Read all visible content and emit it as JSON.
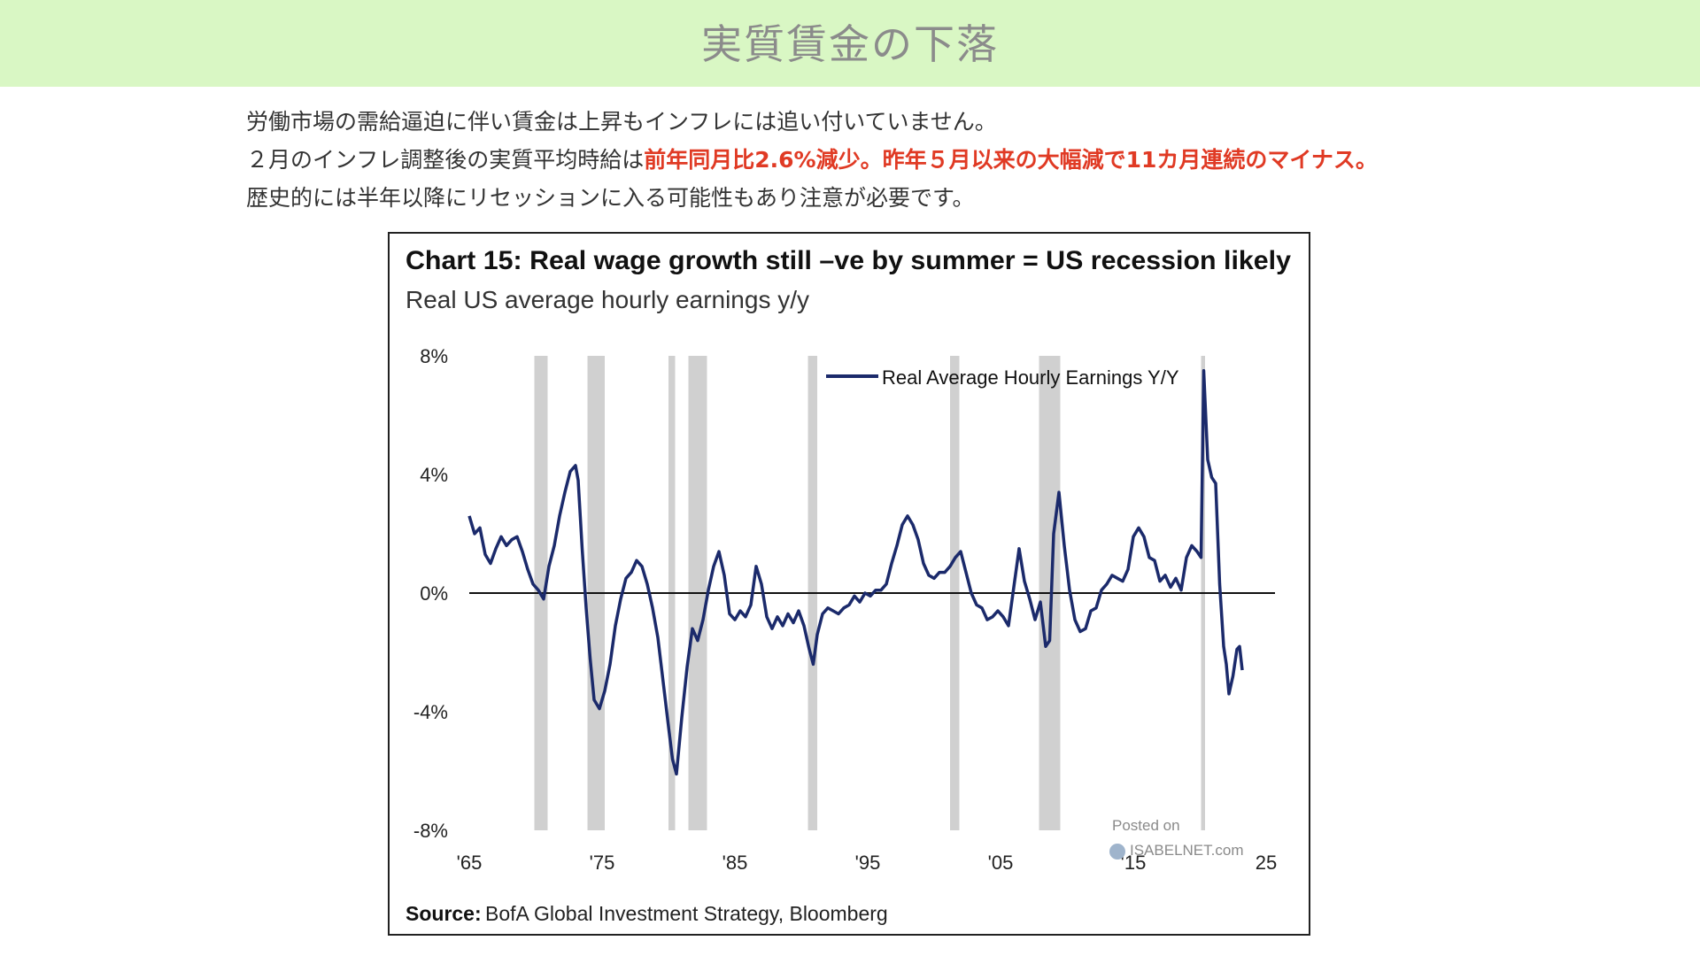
{
  "header": {
    "title": "実質賃金の下落"
  },
  "intro": {
    "line1": "労働市場の需給逼迫に伴い賃金は上昇もインフレには追い付いていません。",
    "line2_pre": "２月のインフレ調整後の実質平均時給は",
    "line2_highlight": "前年同月比2.6%減少。昨年５月以来の大幅減で11カ月連続のマイナス。",
    "line3": "歴史的には半年以降にリセッションに入る可能性もあり注意が必要です。"
  },
  "colors": {
    "header_bg": "#d9f7c4",
    "highlight": "#e03a24",
    "series": "#1b2a6b",
    "recession": "#c8c8c8"
  },
  "chart_data": {
    "type": "line",
    "title": "Chart 15: Real wage growth still –ve by summer = US recession likely",
    "subtitle": "Real US average hourly earnings y/y",
    "source_label": "Source:",
    "source_text": "BofA Global Investment Strategy, Bloomberg",
    "watermark": {
      "line1": "Posted on",
      "line2": "ISABELNET.com"
    },
    "xlim": [
      1965,
      2025
    ],
    "ylim": [
      -8,
      8
    ],
    "x_ticks": [
      1965,
      1975,
      1985,
      1995,
      2005,
      2015,
      2025
    ],
    "x_tick_labels": [
      "'65",
      "'75",
      "'85",
      "'95",
      "'05",
      "'15",
      "25"
    ],
    "y_ticks": [
      8,
      4,
      0,
      -4,
      -8
    ],
    "y_tick_labels": [
      "8%",
      "4%",
      "0%",
      "-4%",
      "-8%"
    ],
    "recessions": [
      [
        1969.9,
        1970.9
      ],
      [
        1973.9,
        1975.2
      ],
      [
        1980.0,
        1980.5
      ],
      [
        1981.5,
        1982.9
      ],
      [
        1990.5,
        1991.2
      ],
      [
        2001.2,
        2001.9
      ],
      [
        2007.9,
        2009.5
      ],
      [
        2020.1,
        2020.4
      ]
    ],
    "series": [
      {
        "name": "Real Average Hourly Earnings Y/Y",
        "points": [
          [
            1965.0,
            2.6
          ],
          [
            1965.4,
            2.0
          ],
          [
            1965.8,
            2.2
          ],
          [
            1966.2,
            1.3
          ],
          [
            1966.6,
            1.0
          ],
          [
            1967.0,
            1.5
          ],
          [
            1967.4,
            1.9
          ],
          [
            1967.8,
            1.6
          ],
          [
            1968.2,
            1.8
          ],
          [
            1968.6,
            1.9
          ],
          [
            1969.0,
            1.4
          ],
          [
            1969.4,
            0.8
          ],
          [
            1969.8,
            0.3
          ],
          [
            1970.2,
            0.1
          ],
          [
            1970.6,
            -0.2
          ],
          [
            1971.0,
            0.9
          ],
          [
            1971.4,
            1.6
          ],
          [
            1971.8,
            2.6
          ],
          [
            1972.2,
            3.4
          ],
          [
            1972.6,
            4.1
          ],
          [
            1973.0,
            4.3
          ],
          [
            1973.2,
            3.8
          ],
          [
            1973.5,
            1.5
          ],
          [
            1973.8,
            -0.5
          ],
          [
            1974.1,
            -2.2
          ],
          [
            1974.4,
            -3.6
          ],
          [
            1974.8,
            -3.9
          ],
          [
            1975.2,
            -3.3
          ],
          [
            1975.6,
            -2.4
          ],
          [
            1976.0,
            -1.1
          ],
          [
            1976.4,
            -0.2
          ],
          [
            1976.8,
            0.5
          ],
          [
            1977.2,
            0.7
          ],
          [
            1977.6,
            1.1
          ],
          [
            1978.0,
            0.9
          ],
          [
            1978.4,
            0.3
          ],
          [
            1978.8,
            -0.5
          ],
          [
            1979.2,
            -1.5
          ],
          [
            1979.6,
            -3.0
          ],
          [
            1980.0,
            -4.5
          ],
          [
            1980.3,
            -5.6
          ],
          [
            1980.6,
            -6.1
          ],
          [
            1981.0,
            -4.2
          ],
          [
            1981.4,
            -2.5
          ],
          [
            1981.8,
            -1.2
          ],
          [
            1982.2,
            -1.6
          ],
          [
            1982.6,
            -0.9
          ],
          [
            1983.0,
            0.1
          ],
          [
            1983.4,
            0.9
          ],
          [
            1983.8,
            1.4
          ],
          [
            1984.2,
            0.6
          ],
          [
            1984.6,
            -0.7
          ],
          [
            1985.0,
            -0.9
          ],
          [
            1985.4,
            -0.6
          ],
          [
            1985.8,
            -0.8
          ],
          [
            1986.2,
            -0.4
          ],
          [
            1986.6,
            0.9
          ],
          [
            1987.0,
            0.3
          ],
          [
            1987.4,
            -0.8
          ],
          [
            1987.8,
            -1.2
          ],
          [
            1988.2,
            -0.8
          ],
          [
            1988.6,
            -1.1
          ],
          [
            1989.0,
            -0.7
          ],
          [
            1989.4,
            -1.0
          ],
          [
            1989.8,
            -0.6
          ],
          [
            1990.2,
            -1.1
          ],
          [
            1990.6,
            -1.9
          ],
          [
            1990.9,
            -2.4
          ],
          [
            1991.2,
            -1.4
          ],
          [
            1991.6,
            -0.7
          ],
          [
            1992.0,
            -0.5
          ],
          [
            1992.4,
            -0.6
          ],
          [
            1992.8,
            -0.7
          ],
          [
            1993.2,
            -0.5
          ],
          [
            1993.6,
            -0.4
          ],
          [
            1994.0,
            -0.1
          ],
          [
            1994.4,
            -0.3
          ],
          [
            1994.8,
            0.0
          ],
          [
            1995.2,
            -0.1
          ],
          [
            1995.6,
            0.1
          ],
          [
            1996.0,
            0.1
          ],
          [
            1996.4,
            0.3
          ],
          [
            1996.8,
            1.0
          ],
          [
            1997.2,
            1.6
          ],
          [
            1997.6,
            2.3
          ],
          [
            1998.0,
            2.6
          ],
          [
            1998.4,
            2.3
          ],
          [
            1998.8,
            1.8
          ],
          [
            1999.2,
            1.0
          ],
          [
            1999.6,
            0.6
          ],
          [
            2000.0,
            0.5
          ],
          [
            2000.4,
            0.7
          ],
          [
            2000.8,
            0.7
          ],
          [
            2001.2,
            0.9
          ],
          [
            2001.6,
            1.2
          ],
          [
            2002.0,
            1.4
          ],
          [
            2002.4,
            0.7
          ],
          [
            2002.8,
            0.0
          ],
          [
            2003.2,
            -0.4
          ],
          [
            2003.6,
            -0.5
          ],
          [
            2004.0,
            -0.9
          ],
          [
            2004.4,
            -0.8
          ],
          [
            2004.8,
            -0.6
          ],
          [
            2005.2,
            -0.8
          ],
          [
            2005.6,
            -1.1
          ],
          [
            2006.0,
            0.2
          ],
          [
            2006.4,
            1.5
          ],
          [
            2006.8,
            0.4
          ],
          [
            2007.2,
            -0.2
          ],
          [
            2007.6,
            -0.9
          ],
          [
            2008.0,
            -0.3
          ],
          [
            2008.4,
            -1.8
          ],
          [
            2008.7,
            -1.6
          ],
          [
            2009.0,
            2.0
          ],
          [
            2009.4,
            3.4
          ],
          [
            2009.8,
            1.6
          ],
          [
            2010.2,
            0.1
          ],
          [
            2010.6,
            -0.9
          ],
          [
            2011.0,
            -1.3
          ],
          [
            2011.4,
            -1.2
          ],
          [
            2011.8,
            -0.6
          ],
          [
            2012.2,
            -0.5
          ],
          [
            2012.6,
            0.1
          ],
          [
            2013.0,
            0.3
          ],
          [
            2013.4,
            0.6
          ],
          [
            2013.8,
            0.5
          ],
          [
            2014.2,
            0.4
          ],
          [
            2014.6,
            0.8
          ],
          [
            2015.0,
            1.9
          ],
          [
            2015.4,
            2.2
          ],
          [
            2015.8,
            1.9
          ],
          [
            2016.2,
            1.2
          ],
          [
            2016.6,
            1.1
          ],
          [
            2017.0,
            0.4
          ],
          [
            2017.4,
            0.6
          ],
          [
            2017.8,
            0.2
          ],
          [
            2018.2,
            0.5
          ],
          [
            2018.6,
            0.1
          ],
          [
            2019.0,
            1.2
          ],
          [
            2019.4,
            1.6
          ],
          [
            2019.8,
            1.4
          ],
          [
            2020.1,
            1.2
          ],
          [
            2020.3,
            7.5
          ],
          [
            2020.6,
            4.5
          ],
          [
            2020.9,
            3.9
          ],
          [
            2021.2,
            3.7
          ],
          [
            2021.5,
            0.3
          ],
          [
            2021.8,
            -1.8
          ],
          [
            2022.0,
            -2.4
          ],
          [
            2022.2,
            -3.4
          ],
          [
            2022.5,
            -2.8
          ],
          [
            2022.8,
            -1.9
          ],
          [
            2023.0,
            -1.8
          ],
          [
            2023.2,
            -2.6
          ]
        ]
      }
    ]
  }
}
